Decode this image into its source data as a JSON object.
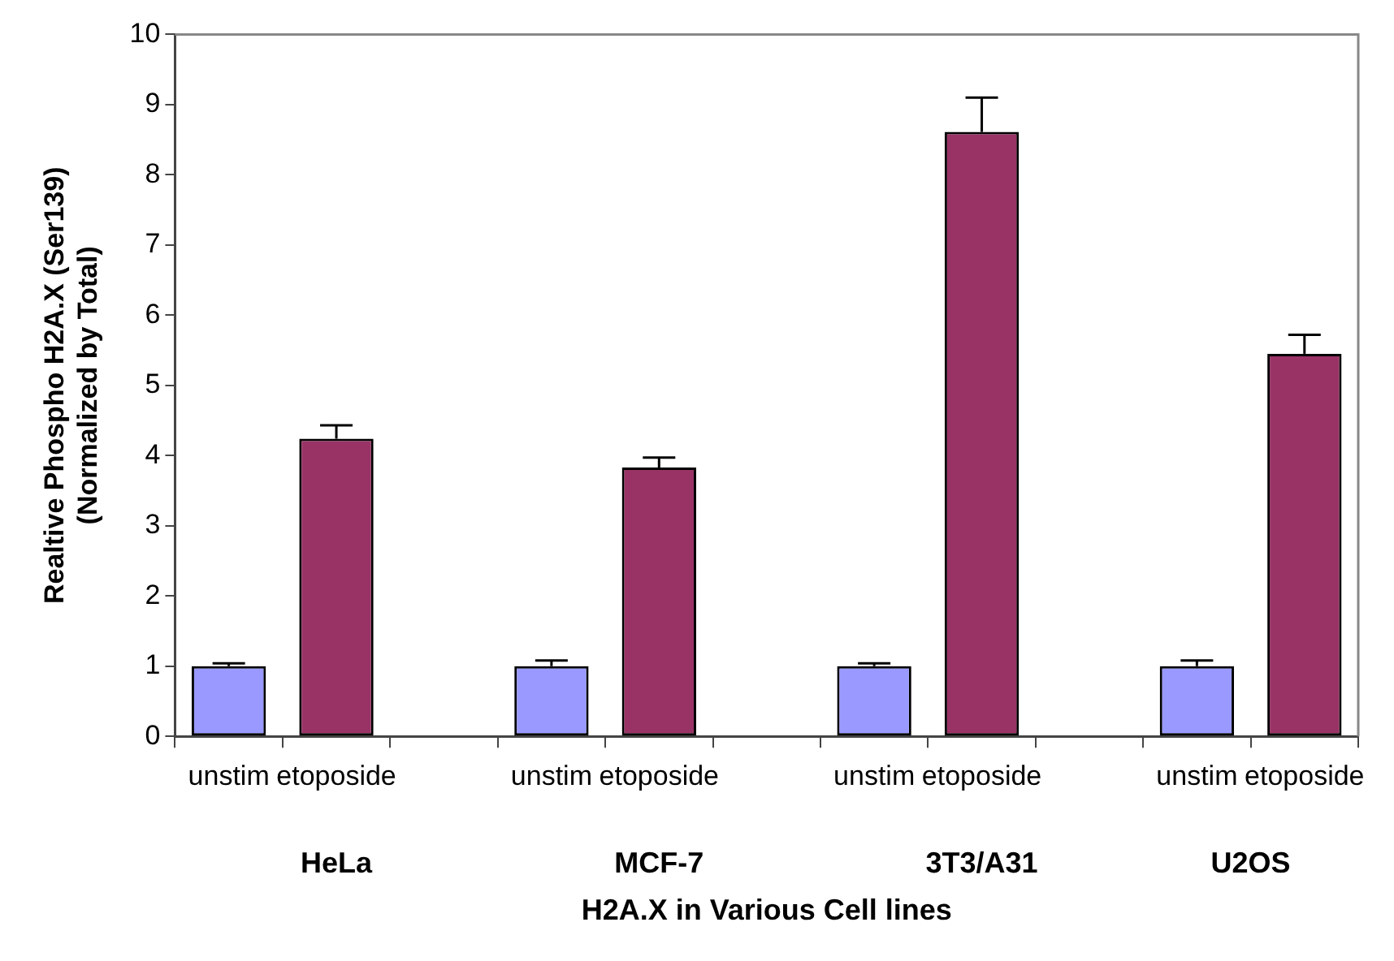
{
  "chart_data": {
    "type": "bar",
    "ylabel": "Realtive Phospho H2A.X (Ser139)\n(Normalized by Total)",
    "xlabel": "H2A.X in Various Cell lines",
    "categories": [
      "unstim",
      "etoposide",
      null,
      "unstim",
      "etoposide",
      null,
      "unstim",
      "etoposide",
      null,
      "unstim",
      "etoposide"
    ],
    "values": [
      1,
      4.24,
      null,
      1,
      3.83,
      null,
      1,
      8.61,
      null,
      1,
      5.45
    ],
    "colors": [
      "#9999ff",
      "#993366",
      "#9999ff",
      "#9999ff",
      "#993366",
      "#9999ff",
      "#9999ff",
      "#993366",
      "#9999ff",
      "#9999ff",
      "#993366"
    ],
    "errors": [
      [
        1,
        1.04
      ],
      [
        4.24,
        4.43
      ],
      null,
      [
        1,
        1.08
      ],
      [
        3.83,
        3.97
      ],
      null,
      [
        1,
        1.04
      ],
      [
        8.61,
        9.1
      ],
      null,
      [
        1,
        1.08
      ],
      [
        5.45,
        5.72
      ]
    ],
    "annotations": [
      "HeLa",
      "MCF-7",
      "3T3/A31",
      "U2OS"
    ],
    "ylim": [
      0,
      10
    ],
    "yticks": [
      0,
      1,
      2,
      3,
      4,
      5,
      6,
      7,
      8,
      9,
      10
    ],
    "grid": false,
    "legend": false
  }
}
